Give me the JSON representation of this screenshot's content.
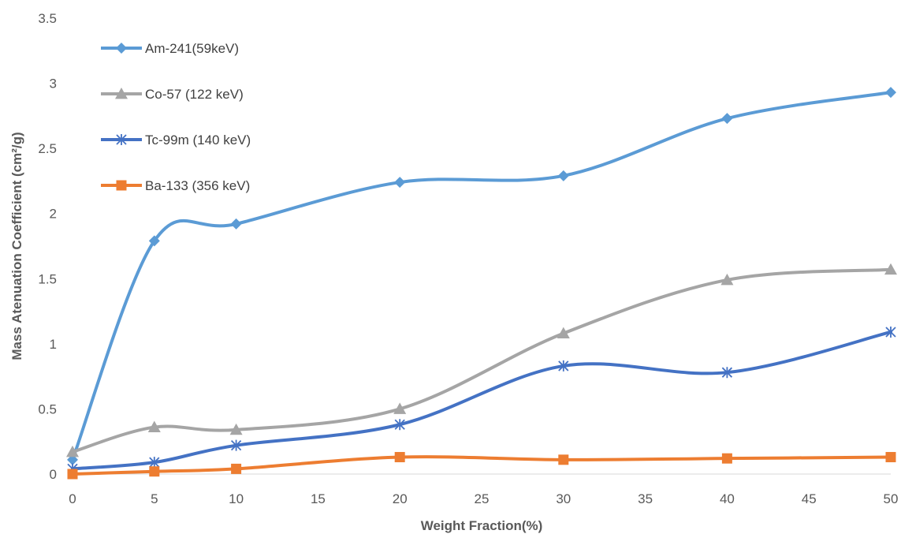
{
  "chart_data": {
    "type": "line",
    "title": "",
    "xlabel": "Weight Fraction(%)",
    "ylabel": "Mass Atenuation Coefficient (cm²/g)",
    "xlim": [
      0,
      50
    ],
    "ylim": [
      0,
      3.5
    ],
    "x_ticks": [
      "0",
      "5",
      "10",
      "15",
      "20",
      "25",
      "30",
      "35",
      "40",
      "45",
      "50"
    ],
    "y_ticks": [
      "0",
      "0.5",
      "1",
      "1.5",
      "2",
      "2.5",
      "3",
      "3.5"
    ],
    "grid": false,
    "smooth": true,
    "legend_position": "top-left",
    "x": [
      0,
      5,
      10,
      20,
      30,
      40,
      50
    ],
    "series": [
      {
        "name": "Am-241(59keV)",
        "color": "#5B9BD5",
        "marker": "diamond",
        "values": [
          0.11,
          1.79,
          1.92,
          2.24,
          2.29,
          2.73,
          2.93
        ]
      },
      {
        "name": "Co-57 (122 keV)",
        "color": "#A5A5A5",
        "marker": "triangle",
        "values": [
          0.17,
          0.36,
          0.34,
          0.5,
          1.08,
          1.49,
          1.57
        ]
      },
      {
        "name": "Tc-99m (140 keV)",
        "color": "#4472C4",
        "marker": "star",
        "values": [
          0.04,
          0.09,
          0.22,
          0.38,
          0.83,
          0.78,
          1.09
        ]
      },
      {
        "name": "Ba-133 (356 keV)",
        "color": "#ED7D31",
        "marker": "square",
        "values": [
          0.0,
          0.02,
          0.04,
          0.13,
          0.11,
          0.12,
          0.13
        ]
      }
    ]
  }
}
